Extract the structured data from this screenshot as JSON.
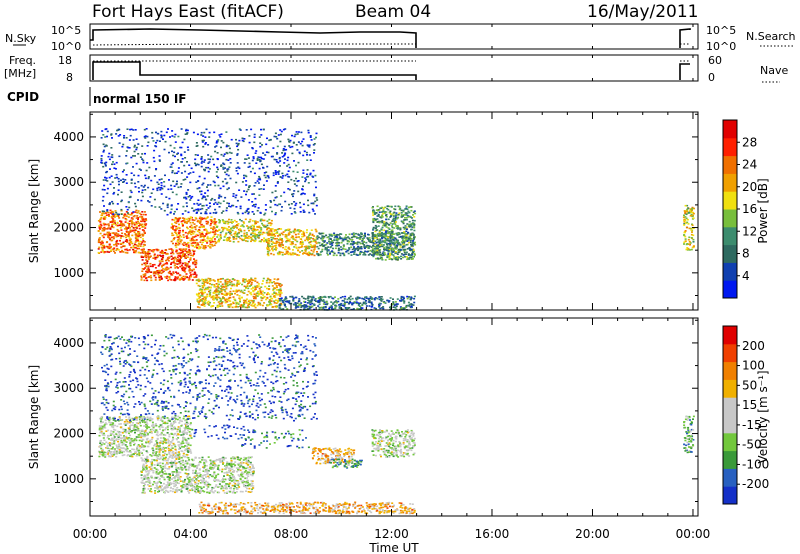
{
  "header": {
    "station": "Fort Hays East (fitACF)",
    "beam": "Beam 04",
    "date": "16/May/2011"
  },
  "summary_panels": {
    "nsky": {
      "label": "N.Sky",
      "ticks": [
        "10^5",
        "10^0"
      ]
    },
    "nsearch": {
      "label": "N.Search",
      "ticks": [
        "10^5",
        "10^0"
      ]
    },
    "freq": {
      "label_top": "Freq.",
      "label_unit": "[MHz]",
      "ticks": [
        "18",
        "8"
      ]
    },
    "nave": {
      "label": "Nave",
      "ticks": [
        "60",
        "0"
      ]
    },
    "cpid": {
      "label": "CPID",
      "value": "normal 150 IF"
    }
  },
  "colors": {
    "power": [
      "#0018f0",
      "#1040b0",
      "#2e6a60",
      "#3c8c6e",
      "#78be3c",
      "#f0e010",
      "#f0a000",
      "#f07000",
      "#ff2000",
      "#e00000"
    ],
    "velocity": [
      "#1430c8",
      "#2860c0",
      "#3a9a3a",
      "#72c83c",
      "#c8c8c8",
      "#c8c8c8",
      "#f0b000",
      "#f08000",
      "#f04000",
      "#e00000"
    ]
  },
  "chart_data": [
    {
      "type": "heatmap",
      "name": "power",
      "ylabel": "Slant Range [km]",
      "ylim": [
        180,
        4550
      ],
      "yticks": [
        "1000",
        "2000",
        "3000",
        "4000"
      ],
      "xlim": [
        0,
        24.2
      ],
      "colorbar_label": "Power [dB]",
      "colorbar_ticks": [
        "4",
        "8",
        "12",
        "16",
        "20",
        "24",
        "28"
      ],
      "colorbar_range": [
        0,
        32
      ],
      "features": [
        {
          "t0": 0.3,
          "t1": 2.2,
          "r0": 1450,
          "r1": 2400,
          "level": 0.75
        },
        {
          "t0": 2.0,
          "t1": 4.2,
          "r0": 850,
          "r1": 1550,
          "level": 0.8
        },
        {
          "t0": 3.2,
          "t1": 5.0,
          "r0": 1550,
          "r1": 2250,
          "level": 0.7
        },
        {
          "t0": 5.0,
          "t1": 7.2,
          "r0": 1700,
          "r1": 2200,
          "level": 0.55
        },
        {
          "t0": 7.0,
          "t1": 9.0,
          "r0": 1400,
          "r1": 2000,
          "level": 0.6
        },
        {
          "t0": 4.2,
          "t1": 7.6,
          "r0": 250,
          "r1": 900,
          "level": 0.6
        },
        {
          "t0": 9.0,
          "t1": 12.9,
          "r0": 1400,
          "r1": 1900,
          "level": 0.3
        },
        {
          "t0": 11.2,
          "t1": 12.9,
          "r0": 1300,
          "r1": 2500,
          "level": 0.35
        },
        {
          "t0": 7.5,
          "t1": 12.9,
          "r0": 200,
          "r1": 500,
          "level": 0.25
        },
        {
          "t0": 0.4,
          "t1": 9.0,
          "r0": 2300,
          "r1": 4200,
          "level": 0.15
        },
        {
          "t0": 23.6,
          "t1": 24.0,
          "r0": 1500,
          "r1": 2500,
          "level": 0.55
        }
      ]
    },
    {
      "type": "heatmap",
      "name": "velocity",
      "ylabel": "Slant Range [km]",
      "ylim": [
        180,
        4550
      ],
      "yticks": [
        "1000",
        "2000",
        "3000",
        "4000"
      ],
      "xlabel": "Time UT",
      "xlim": [
        0,
        24.2
      ],
      "xticks": [
        {
          "t": 0,
          "label": "00:00"
        },
        {
          "t": 4,
          "label": "04:00"
        },
        {
          "t": 8,
          "label": "08:00"
        },
        {
          "t": 12,
          "label": "12:00"
        },
        {
          "t": 16,
          "label": "16:00"
        },
        {
          "t": 20,
          "label": "20:00"
        },
        {
          "t": 24,
          "label": "00:00"
        }
      ],
      "colorbar_label": "Velocity [m s⁻¹]",
      "colorbar_ticks": [
        "200",
        "100",
        "50",
        "15",
        "-15",
        "-50",
        "-100",
        "-200"
      ],
      "colorbar_range": [
        -250,
        250
      ],
      "features": [
        {
          "t0": 0.3,
          "t1": 4.0,
          "r0": 1500,
          "r1": 2400,
          "level": 0.45
        },
        {
          "t0": 2.0,
          "t1": 6.5,
          "r0": 700,
          "r1": 1500,
          "level": 0.45
        },
        {
          "t0": 4.0,
          "t1": 6.5,
          "r0": 1900,
          "r1": 2200,
          "level": 0.05
        },
        {
          "t0": 6.0,
          "t1": 8.8,
          "r0": 1700,
          "r1": 2100,
          "level": 0.2
        },
        {
          "t0": 8.8,
          "t1": 10.5,
          "r0": 1350,
          "r1": 1700,
          "level": 0.65
        },
        {
          "t0": 9.5,
          "t1": 10.8,
          "r0": 1250,
          "r1": 1450,
          "level": 0.28
        },
        {
          "t0": 11.2,
          "t1": 12.9,
          "r0": 1500,
          "r1": 2100,
          "level": 0.45
        },
        {
          "t0": 4.3,
          "t1": 12.9,
          "r0": 250,
          "r1": 500,
          "level": 0.65
        },
        {
          "t0": 0.4,
          "t1": 9.0,
          "r0": 2300,
          "r1": 4200,
          "level": 0.1
        },
        {
          "t0": 23.6,
          "t1": 24.0,
          "r0": 1600,
          "r1": 2400,
          "level": 0.3
        }
      ]
    }
  ]
}
